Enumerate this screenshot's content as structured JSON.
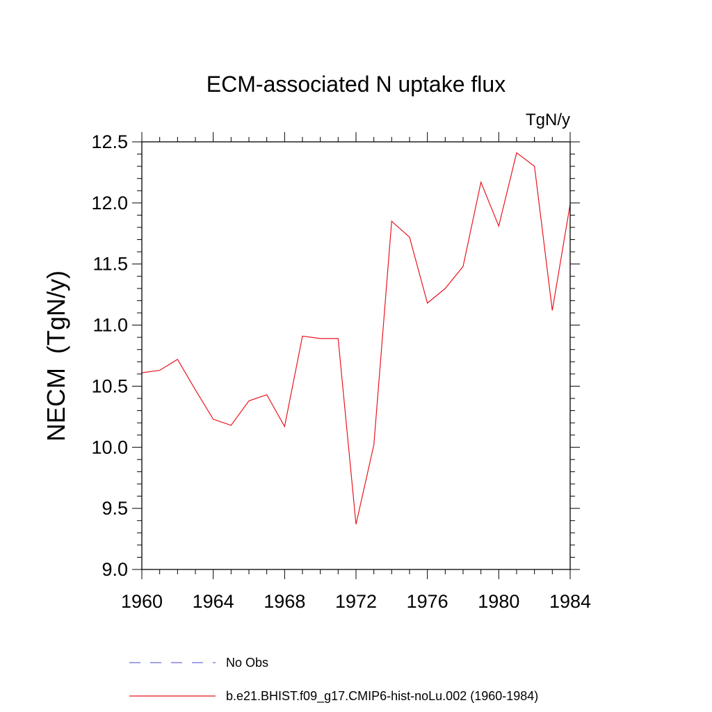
{
  "chart_data": {
    "type": "line",
    "title": "ECM-associated N uptake flux",
    "units_label": "TgN/y",
    "ylabel": "NECM  (TgN/y)",
    "xlabel": "",
    "xlim": [
      1960,
      1984
    ],
    "ylim": [
      9.0,
      12.5
    ],
    "x_ticks": [
      1960,
      1964,
      1968,
      1972,
      1976,
      1980,
      1984
    ],
    "x_tick_labels": [
      "1960",
      "1964",
      "1968",
      "1972",
      "1976",
      "1980",
      "1984"
    ],
    "y_ticks": [
      9.0,
      9.5,
      10.0,
      10.5,
      11.0,
      11.5,
      12.0,
      12.5
    ],
    "y_tick_labels": [
      "9.0",
      "9.5",
      "10.0",
      "10.5",
      "11.0",
      "11.5",
      "12.0",
      "12.5"
    ],
    "grid": false,
    "legend_position": "bottom",
    "series": [
      {
        "name": "b.e21.BHIST.f09_g17.CMIP6-hist-noLu.002 (1960-1984)",
        "color": "#e8141e",
        "style": "solid",
        "x": [
          1960,
          1961,
          1962,
          1963,
          1964,
          1965,
          1966,
          1967,
          1968,
          1969,
          1970,
          1971,
          1972,
          1973,
          1974,
          1975,
          1976,
          1977,
          1978,
          1979,
          1980,
          1981,
          1982,
          1983,
          1984
        ],
        "y": [
          10.61,
          10.63,
          10.72,
          10.47,
          10.23,
          10.18,
          10.38,
          10.43,
          10.17,
          10.91,
          10.89,
          10.89,
          9.37,
          10.02,
          11.85,
          11.72,
          11.18,
          11.3,
          11.48,
          12.17,
          11.81,
          12.41,
          12.3,
          11.12,
          11.99
        ]
      }
    ],
    "legend": [
      {
        "label": "No Obs",
        "color": "#6b6bd6",
        "style": "dashed"
      },
      {
        "label": "b.e21.BHIST.f09_g17.CMIP6-hist-noLu.002 (1960-1984)",
        "color": "#e8141e",
        "style": "solid"
      }
    ]
  }
}
